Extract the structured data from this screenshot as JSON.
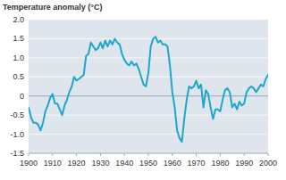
{
  "chart_data": {
    "type": "line",
    "y_label": "Temperature anomaly (°C)",
    "x": [
      1900,
      1901,
      1902,
      1903,
      1904,
      1905,
      1906,
      1907,
      1908,
      1909,
      1910,
      1911,
      1912,
      1913,
      1914,
      1915,
      1916,
      1917,
      1918,
      1919,
      1920,
      1921,
      1922,
      1923,
      1924,
      1925,
      1926,
      1927,
      1928,
      1929,
      1930,
      1931,
      1932,
      1933,
      1934,
      1935,
      1936,
      1937,
      1938,
      1939,
      1940,
      1941,
      1942,
      1943,
      1944,
      1945,
      1946,
      1947,
      1948,
      1949,
      1950,
      1951,
      1952,
      1953,
      1954,
      1955,
      1956,
      1957,
      1958,
      1959,
      1960,
      1961,
      1962,
      1963,
      1964,
      1965,
      1966,
      1967,
      1968,
      1969,
      1970,
      1971,
      1972,
      1973,
      1974,
      1975,
      1976,
      1977,
      1978,
      1979,
      1980,
      1981,
      1982,
      1983,
      1984,
      1985,
      1986,
      1987,
      1988,
      1989,
      1990,
      1991,
      1992,
      1993,
      1994,
      1995,
      1996,
      1997,
      1998,
      1999,
      2000
    ],
    "values": [
      -0.3,
      -0.55,
      -0.7,
      -0.7,
      -0.75,
      -0.9,
      -0.7,
      -0.4,
      -0.25,
      -0.05,
      0.05,
      -0.2,
      -0.2,
      -0.35,
      -0.5,
      -0.25,
      -0.1,
      0.1,
      0.25,
      0.5,
      0.4,
      0.45,
      0.5,
      0.55,
      1.05,
      1.1,
      1.4,
      1.3,
      1.2,
      1.25,
      1.4,
      1.25,
      1.45,
      1.3,
      1.45,
      1.35,
      1.5,
      1.4,
      1.35,
      1.1,
      0.95,
      0.85,
      0.8,
      0.9,
      0.8,
      0.85,
      0.7,
      0.5,
      0.3,
      0.25,
      0.6,
      1.3,
      1.5,
      1.55,
      1.4,
      1.45,
      1.35,
      1.35,
      1.3,
      0.8,
      0.1,
      -0.3,
      -0.9,
      -1.1,
      -1.2,
      -0.6,
      -0.1,
      0.25,
      0.2,
      0.25,
      0.4,
      0.2,
      0.3,
      -0.3,
      0.15,
      0.05,
      -0.3,
      -0.6,
      -0.35,
      -0.35,
      -0.4,
      -0.1,
      0.15,
      0.2,
      0.1,
      -0.3,
      -0.2,
      -0.35,
      -0.15,
      -0.25,
      -0.2,
      0.1,
      0.2,
      0.25,
      0.2,
      0.1,
      0.2,
      0.3,
      0.25,
      0.45,
      0.55
    ],
    "color": "#1ea7cc",
    "xlim": [
      1900,
      2000
    ],
    "xticks": [
      1900,
      1910,
      1920,
      1930,
      1940,
      1950,
      1960,
      1970,
      1980,
      1990,
      2000
    ],
    "ylim": [
      -1.5,
      2.0
    ],
    "yticks": [
      {
        "value": 2,
        "label": "2.0"
      },
      1.5,
      {
        "value": 1,
        "label": "1.0"
      },
      0.5,
      0,
      -0.5,
      {
        "value": -1,
        "label": "-1.0"
      },
      -1.5
    ],
    "grid": true
  }
}
